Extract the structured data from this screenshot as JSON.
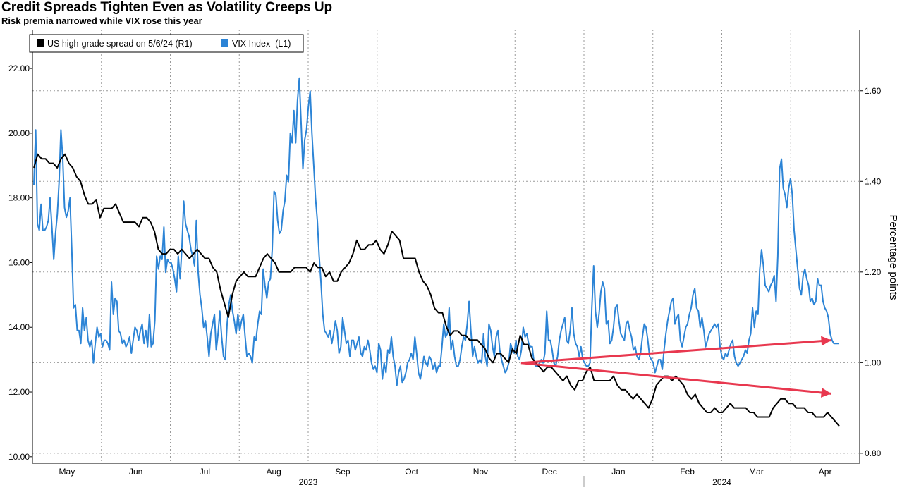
{
  "title": "Credit Spreads Tighten Even as Volatility Creeps Up",
  "subtitle": "Risk premia narrowed while VIX rose this year",
  "chart_data": {
    "type": "line",
    "left_axis": {
      "ticks": [
        "10.00",
        "12.00",
        "14.00",
        "16.00",
        "18.00",
        "20.00",
        "22.00"
      ],
      "range": [
        9.8,
        23.2
      ]
    },
    "right_axis": {
      "label": "Percentage points",
      "ticks": [
        "0.80",
        "1.00",
        "1.20",
        "1.40",
        "1.60"
      ],
      "range": [
        0.778,
        1.735
      ]
    },
    "x_axis": {
      "months": [
        "May",
        "Jun",
        "Jul",
        "Aug",
        "Sep",
        "Oct",
        "Nov",
        "Dec",
        "Jan",
        "Feb",
        "Mar",
        "Apr"
      ],
      "years": [
        "2023",
        "2024"
      ]
    },
    "legend": {
      "position": "top-left"
    },
    "grid": true,
    "series": [
      {
        "name": "US high-grade spread on 5/6/24 (R1)",
        "axis": "right",
        "color": "#000000",
        "values": [
          1.43,
          1.46,
          1.45,
          1.45,
          1.44,
          1.44,
          1.43,
          1.45,
          1.46,
          1.44,
          1.43,
          1.41,
          1.4,
          1.37,
          1.35,
          1.35,
          1.36,
          1.32,
          1.34,
          1.34,
          1.34,
          1.35,
          1.33,
          1.31,
          1.31,
          1.31,
          1.31,
          1.3,
          1.32,
          1.32,
          1.31,
          1.29,
          1.25,
          1.24,
          1.24,
          1.25,
          1.25,
          1.24,
          1.25,
          1.24,
          1.23,
          1.24,
          1.25,
          1.24,
          1.23,
          1.23,
          1.21,
          1.2,
          1.16,
          1.13,
          1.1,
          1.15,
          1.18,
          1.19,
          1.2,
          1.19,
          1.19,
          1.19,
          1.21,
          1.23,
          1.24,
          1.23,
          1.22,
          1.2,
          1.2,
          1.2,
          1.2,
          1.21,
          1.21,
          1.21,
          1.21,
          1.2,
          1.22,
          1.21,
          1.21,
          1.19,
          1.2,
          1.18,
          1.18,
          1.2,
          1.21,
          1.22,
          1.24,
          1.27,
          1.25,
          1.25,
          1.26,
          1.26,
          1.27,
          1.25,
          1.24,
          1.26,
          1.29,
          1.28,
          1.27,
          1.23,
          1.23,
          1.23,
          1.23,
          1.2,
          1.18,
          1.17,
          1.15,
          1.12,
          1.11,
          1.11,
          1.08,
          1.06,
          1.07,
          1.07,
          1.06,
          1.06,
          1.05,
          1.05,
          1.05,
          1.04,
          1.03,
          1.01,
          1.0,
          1.02,
          1.02,
          1.01,
          1.0,
          1.03,
          1.02,
          1.06,
          1.04,
          1.04,
          1.01,
          1.0,
          0.99,
          0.98,
          0.99,
          0.99,
          0.98,
          0.97,
          0.96,
          0.97,
          0.95,
          0.94,
          0.96,
          0.96,
          0.98,
          0.99,
          0.96,
          0.96,
          0.96,
          0.96,
          0.96,
          0.97,
          0.95,
          0.94,
          0.94,
          0.93,
          0.92,
          0.93,
          0.92,
          0.91,
          0.9,
          0.92,
          0.95,
          0.96,
          0.97,
          0.97,
          0.96,
          0.97,
          0.96,
          0.95,
          0.93,
          0.92,
          0.93,
          0.91,
          0.9,
          0.89,
          0.89,
          0.9,
          0.89,
          0.89,
          0.9,
          0.91,
          0.9,
          0.9,
          0.9,
          0.9,
          0.89,
          0.89,
          0.88,
          0.88,
          0.88,
          0.88,
          0.9,
          0.91,
          0.92,
          0.92,
          0.91,
          0.91,
          0.9,
          0.9,
          0.9,
          0.89,
          0.89,
          0.88,
          0.88,
          0.88,
          0.89,
          0.88,
          0.87,
          0.86
        ]
      },
      {
        "name": "VIX Index  (L1)",
        "axis": "left",
        "color": "#2c84d6",
        "values": [
          18.4,
          20.1,
          17.2,
          17.0,
          17.8,
          17.0,
          17.0,
          17.1,
          17.3,
          18.0,
          17.1,
          16.1,
          16.9,
          17.5,
          18.5,
          20.1,
          19.2,
          17.7,
          17.4,
          17.6,
          18.0,
          16.4,
          14.6,
          14.7,
          13.9,
          13.9,
          13.5,
          14.6,
          13.9,
          14.3,
          13.6,
          13.4,
          13.6,
          12.9,
          13.5,
          14.0,
          13.7,
          13.8,
          13.4,
          13.6,
          13.6,
          13.5,
          13.3,
          15.4,
          14.4,
          14.9,
          14.8,
          13.9,
          13.8,
          13.5,
          13.6,
          13.4,
          13.5,
          13.7,
          13.2,
          13.6,
          14.0,
          13.9,
          13.6,
          13.9,
          14.1,
          13.5,
          13.9,
          13.4,
          14.4,
          13.4,
          13.5,
          14.2,
          16.2,
          15.8,
          16.2,
          16.1,
          17.1,
          15.7,
          16.1,
          16.0,
          16.0,
          15.8,
          15.5,
          15.1,
          16.2,
          15.5,
          16.5,
          17.9,
          17.2,
          17.0,
          16.8,
          16.4,
          16.2,
          15.9,
          17.3,
          15.7,
          15.0,
          14.6,
          14.0,
          14.2,
          13.7,
          13.1,
          13.8,
          14.1,
          14.4,
          13.3,
          13.8,
          14.5,
          13.7,
          13.1,
          13.0,
          14.1,
          14.7,
          15.0,
          14.5,
          14.2,
          13.8,
          14.4,
          13.9,
          14.2,
          14.4,
          13.7,
          13.1,
          13.2,
          13.1,
          12.9,
          13.7,
          13.6,
          14.1,
          14.5,
          14.4,
          15.8,
          15.3,
          14.9,
          15.4,
          15.5,
          16.4,
          18.2,
          18.1,
          17.3,
          16.9,
          17.0,
          17.6,
          17.9,
          18.7,
          18.5,
          20.0,
          19.7,
          20.7,
          19.7,
          21.0,
          21.7,
          20.3,
          18.9,
          19.8,
          20.1,
          20.8,
          21.3,
          20.0,
          19.0,
          18.0,
          17.3,
          16.2,
          15.4,
          14.4,
          13.9,
          13.8,
          13.7,
          13.9,
          13.5,
          13.8,
          14.2,
          13.9,
          13.2,
          13.4,
          14.3,
          13.9,
          13.5,
          13.6,
          13.1,
          13.6,
          13.6,
          13.3,
          13.5,
          13.7,
          13.2,
          13.1,
          13.4,
          13.3,
          13.6,
          13.3,
          12.9,
          12.7,
          12.8,
          12.6,
          13.5,
          13.3,
          12.4,
          12.9,
          12.6,
          13.3,
          13.2,
          13.7,
          13.1,
          12.8,
          12.2,
          12.6,
          12.8,
          12.3,
          12.4,
          12.6,
          12.9,
          13.0,
          13.2,
          13.0,
          13.7,
          13.2,
          12.6,
          12.4,
          12.7,
          13.1,
          12.9,
          12.8,
          13.1,
          13.0,
          12.7,
          12.9,
          12.6,
          12.8,
          12.8,
          13.4,
          14.1,
          13.7,
          13.8,
          14.6,
          13.3,
          13.6,
          13.1,
          12.8,
          12.8,
          13.0,
          13.4,
          13.7,
          13.6,
          14.1,
          14.8,
          13.9,
          13.1,
          13.4,
          13.1,
          12.9,
          13.0,
          12.9,
          13.8,
          13.1,
          12.8,
          14.1,
          13.9,
          13.4,
          13.1,
          13.7,
          13.9,
          13.3,
          13.0,
          12.8,
          12.6,
          12.7,
          12.9,
          13.5,
          13.3,
          13.2,
          13.6,
          13.1,
          13.0,
          13.3,
          14.0,
          13.7,
          13.8,
          13.5,
          13.4,
          13.4,
          12.9,
          12.8,
          12.8,
          12.9,
          13.0,
          12.9,
          13.2,
          14.5,
          13.6,
          13.6,
          13.3,
          12.9,
          12.8,
          13.1,
          13.6,
          13.9,
          14.1,
          14.3,
          13.6,
          13.5,
          13.9,
          14.6,
          13.8,
          13.5,
          13.4,
          13.1,
          13.4,
          13.0,
          12.9,
          12.8,
          12.8,
          12.9,
          14.6,
          15.9,
          14.5,
          14.0,
          14.4,
          15.1,
          15.4,
          15.2,
          14.1,
          14.2,
          13.5,
          13.6,
          14.0,
          14.6,
          14.7,
          14.2,
          13.8,
          13.7,
          13.6,
          14.1,
          14.2,
          13.9,
          13.7,
          13.3,
          13.4,
          13.1,
          13.0,
          13.2,
          13.7,
          14.1,
          14.0,
          13.6,
          13.1,
          13.0,
          12.9,
          12.6,
          12.8,
          13.0,
          13.0,
          12.7,
          13.3,
          13.8,
          14.2,
          14.5,
          14.8,
          14.9,
          14.1,
          14.3,
          14.4,
          13.6,
          13.4,
          13.7,
          14.0,
          14.1,
          14.4,
          14.6,
          15.0,
          15.2,
          14.6,
          14.5,
          14.0,
          14.3,
          13.9,
          13.4,
          13.6,
          13.8,
          13.9,
          14.0,
          14.1,
          14.0,
          14.1,
          13.4,
          13.1,
          13.0,
          13.2,
          13.1,
          13.3,
          13.5,
          13.6,
          13.1,
          12.9,
          12.8,
          12.9,
          13.0,
          13.1,
          13.3,
          13.2,
          13.6,
          13.8,
          14.6,
          14.0,
          14.5,
          14.4,
          15.8,
          16.4,
          15.9,
          15.3,
          15.2,
          15.1,
          15.3,
          15.4,
          15.6,
          14.8,
          16.2,
          18.9,
          19.2,
          18.3,
          18.1,
          17.7,
          18.3,
          18.6,
          18.1,
          17.0,
          16.4,
          15.8,
          15.2,
          15.0,
          15.6,
          15.8,
          15.5,
          15.3,
          14.8,
          14.9,
          14.7,
          14.8,
          15.5,
          15.3,
          15.3,
          14.8,
          14.6,
          14.5,
          14.3,
          13.8,
          13.6,
          13.5,
          13.5,
          13.5,
          13.5
        ]
      }
    ],
    "annotations": [
      {
        "type": "arrow",
        "color": "#e8384f",
        "from": {
          "series_index": 0.605,
          "value_left": 12.9
        },
        "to": {
          "series_index": 0.99,
          "value_left": 13.6
        }
      },
      {
        "type": "arrow",
        "color": "#e8384f",
        "from": {
          "series_index": 0.605,
          "value_left": 12.9
        },
        "to": {
          "series_index": 0.99,
          "value_left": 11.95
        }
      }
    ]
  }
}
